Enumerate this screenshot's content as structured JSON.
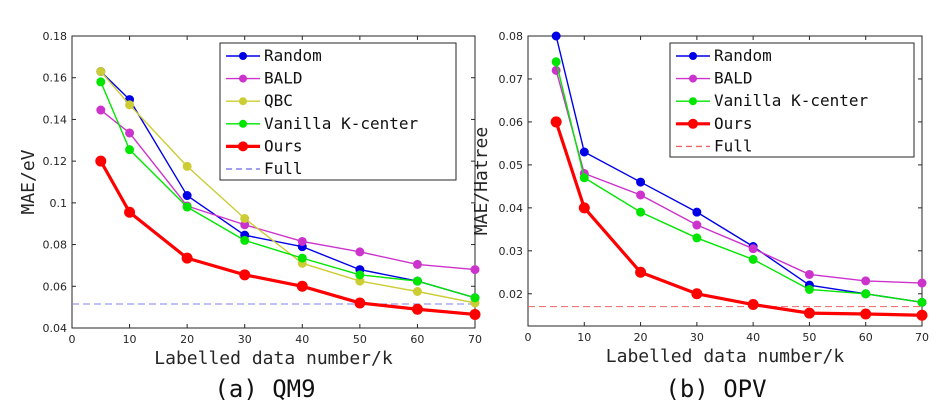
{
  "chart_data": [
    {
      "type": "line",
      "caption": "(a) QM9",
      "xlabel": "Labelled data number/k",
      "ylabel": "MAE/eV",
      "xlim": [
        0,
        70
      ],
      "ylim": [
        0.04,
        0.18
      ],
      "xticks": [
        0,
        10,
        20,
        30,
        40,
        50,
        60,
        70
      ],
      "yticks": [
        0.04,
        0.06,
        0.08,
        0.1,
        0.12,
        0.14,
        0.16,
        0.18
      ],
      "ytick_labels": [
        "0.04",
        "0.06",
        "0.08",
        "0.1",
        "0.12",
        "0.14",
        "0.16",
        "0.18"
      ],
      "grid": false,
      "legend_position": "top-right",
      "x": [
        5,
        10,
        20,
        30,
        40,
        50,
        60,
        70
      ],
      "series": [
        {
          "name": "Random",
          "color": "#0000e6",
          "values": [
            0.163,
            0.1495,
            0.1035,
            0.0845,
            0.079,
            0.068,
            0.0625,
            0.0545
          ]
        },
        {
          "name": "BALD",
          "color": "#cc33cc",
          "values": [
            0.1445,
            0.1335,
            0.0985,
            0.0895,
            0.0815,
            0.0765,
            0.0705,
            0.068
          ]
        },
        {
          "name": "QBC",
          "color": "#cccc33",
          "values": [
            0.163,
            0.147,
            0.1175,
            0.0925,
            0.071,
            0.0625,
            0.0575,
            0.052
          ]
        },
        {
          "name": "Vanilla K-center",
          "color": "#00e600",
          "values": [
            0.158,
            0.1255,
            0.098,
            0.082,
            0.0735,
            0.0655,
            0.0625,
            0.0545
          ]
        },
        {
          "name": "Ours",
          "color": "#ff0000",
          "values": [
            0.12,
            0.0955,
            0.0735,
            0.0655,
            0.06,
            0.052,
            0.049,
            0.0465
          ]
        }
      ],
      "reference": {
        "name": "Full",
        "color": "#8080ee",
        "value": 0.0515
      }
    },
    {
      "type": "line",
      "caption": "(b) OPV",
      "xlabel": "Labelled data number/k",
      "ylabel": "MAE/Hatree",
      "xlim": [
        0,
        70
      ],
      "ylim": [
        0.0125,
        0.08
      ],
      "xticks": [
        0,
        10,
        20,
        30,
        40,
        50,
        60,
        70
      ],
      "yticks": [
        0.02,
        0.03,
        0.04,
        0.05,
        0.06,
        0.07,
        0.08
      ],
      "ytick_labels": [
        "0.02",
        "0.03",
        "0.04",
        "0.05",
        "0.06",
        "0.07",
        "0.08"
      ],
      "grid": false,
      "legend_position": "top-right",
      "x": [
        5,
        10,
        20,
        30,
        40,
        50,
        60,
        70
      ],
      "series": [
        {
          "name": "Random",
          "color": "#0000e6",
          "values": [
            0.08,
            0.053,
            0.046,
            0.039,
            0.031,
            0.022,
            0.02,
            0.018
          ]
        },
        {
          "name": "BALD",
          "color": "#cc33cc",
          "values": [
            0.072,
            0.048,
            0.043,
            0.036,
            0.0305,
            0.0245,
            0.023,
            0.0225
          ]
        },
        {
          "name": "Vanilla K-center",
          "color": "#00e600",
          "values": [
            0.074,
            0.047,
            0.039,
            0.033,
            0.028,
            0.021,
            0.02,
            0.018
          ]
        },
        {
          "name": "Ours",
          "color": "#ff0000",
          "values": [
            0.06,
            0.04,
            0.025,
            0.02,
            0.0175,
            0.0155,
            0.0153,
            0.015
          ]
        }
      ],
      "reference": {
        "name": "Full",
        "color": "#ee6666",
        "value": 0.017
      }
    }
  ]
}
